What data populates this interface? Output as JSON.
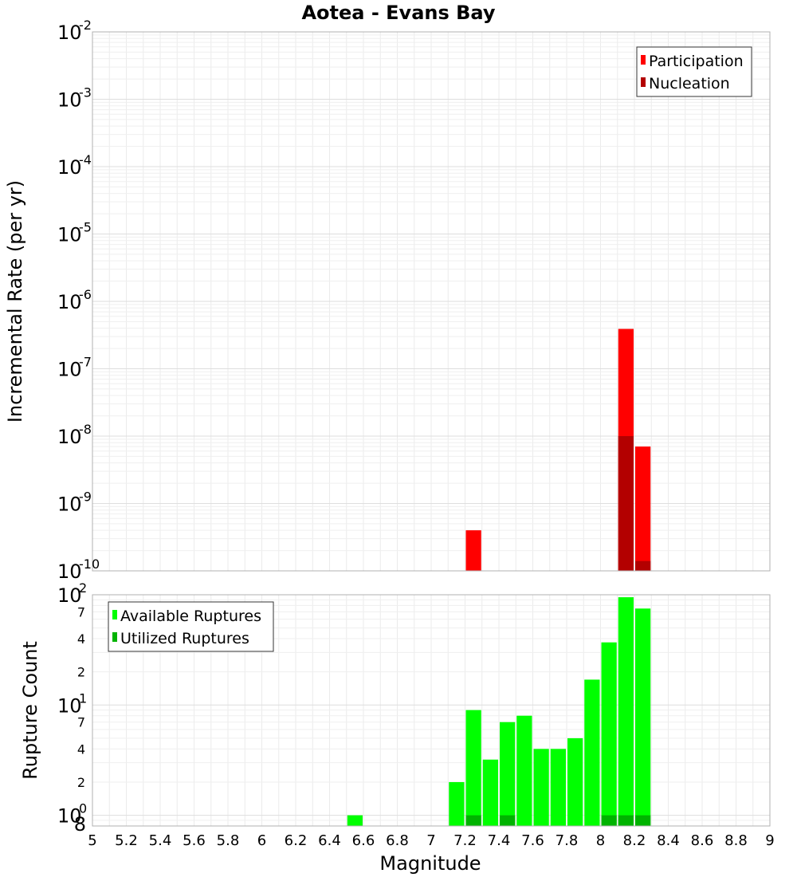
{
  "chart_data": [
    {
      "type": "bar",
      "title": "Aotea - Evans Bay",
      "xlabel": "Magnitude",
      "ylabel": "Incremental Rate (per yr)",
      "yscale": "log",
      "xlim": [
        5,
        9
      ],
      "ylim": [
        1e-10,
        0.01
      ],
      "ytick_labels": [
        {
          "base": "10",
          "exp": "-2"
        },
        {
          "base": "10",
          "exp": "-3"
        },
        {
          "base": "10",
          "exp": "-4"
        },
        {
          "base": "10",
          "exp": "-5"
        },
        {
          "base": "10",
          "exp": "-6"
        },
        {
          "base": "10",
          "exp": "-7"
        },
        {
          "base": "10",
          "exp": "-8"
        },
        {
          "base": "10",
          "exp": "-9"
        },
        {
          "base": "10",
          "exp": "-10"
        }
      ],
      "legend_position": "top-right",
      "grid": true,
      "bar_width": 0.1,
      "series": [
        {
          "name": "Participation",
          "color": "#ff0000",
          "x": [
            7.25,
            8.15,
            8.25
          ],
          "values": [
            4e-10,
            3.9e-07,
            7e-09
          ]
        },
        {
          "name": "Nucleation",
          "color": "#b30000",
          "x": [
            8.15,
            8.25
          ],
          "values": [
            1e-08,
            1.4e-10
          ]
        }
      ]
    },
    {
      "type": "bar",
      "xlabel": "Magnitude",
      "ylabel": "Rupture Count",
      "yscale": "log",
      "xlim": [
        5,
        9
      ],
      "ylim": [
        0.8,
        100
      ],
      "ytick_labels": [
        {
          "base": "10",
          "exp": "2"
        },
        {
          "base": "10",
          "exp": "1"
        },
        {
          "base": "10",
          "exp": "0"
        }
      ],
      "minor_tick_labels": [
        "7",
        "4",
        "2",
        "7",
        "4",
        "2",
        "8"
      ],
      "xtick_labels": [
        "5",
        "5.2",
        "5.4",
        "5.6",
        "5.8",
        "6",
        "6.2",
        "6.4",
        "6.6",
        "6.8",
        "7",
        "7.2",
        "7.4",
        "7.6",
        "7.8",
        "8",
        "8.2",
        "8.4",
        "8.6",
        "8.8",
        "9"
      ],
      "legend_position": "top-left",
      "grid": true,
      "bar_width": 0.1,
      "series": [
        {
          "name": "Available Ruptures",
          "color": "#00ff00",
          "x": [
            6.55,
            7.15,
            7.25,
            7.35,
            7.45,
            7.55,
            7.65,
            7.75,
            7.85,
            7.95,
            8.05,
            8.15,
            8.25
          ],
          "values": [
            1,
            2,
            9,
            3.2,
            7,
            8,
            4,
            4,
            5,
            17,
            37,
            95,
            75
          ]
        },
        {
          "name": "Utilized Ruptures",
          "color": "#00b300",
          "x": [
            7.25,
            7.45,
            8.05,
            8.15,
            8.25
          ],
          "values": [
            1,
            1,
            1,
            1,
            1
          ]
        }
      ]
    }
  ]
}
